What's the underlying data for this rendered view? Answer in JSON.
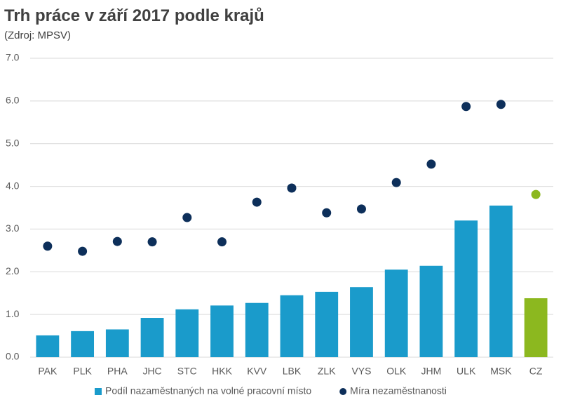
{
  "chart_data": {
    "type": "bar",
    "title": "Trh práce v září 2017 podle krajů",
    "subtitle": "(Zdroj: MPSV)",
    "categories": [
      "PAK",
      "PLK",
      "PHA",
      "JHC",
      "STC",
      "HKK",
      "KVV",
      "LBK",
      "ZLK",
      "VYS",
      "OLK",
      "JHM",
      "ULK",
      "MSK",
      "CZ"
    ],
    "series": [
      {
        "name": "Podíl nazaměstnaných na volné pracovní místo",
        "type": "bar",
        "color": "#1a9bcb",
        "colors": [
          "#1a9bcb",
          "#1a9bcb",
          "#1a9bcb",
          "#1a9bcb",
          "#1a9bcb",
          "#1a9bcb",
          "#1a9bcb",
          "#1a9bcb",
          "#1a9bcb",
          "#1a9bcb",
          "#1a9bcb",
          "#1a9bcb",
          "#1a9bcb",
          "#1a9bcb",
          "#8cb81f"
        ],
        "values": [
          0.51,
          0.61,
          0.65,
          0.92,
          1.12,
          1.21,
          1.27,
          1.45,
          1.53,
          1.64,
          2.05,
          2.14,
          3.2,
          3.55,
          1.38
        ]
      },
      {
        "name": "Míra nezaměstnanosti",
        "type": "scatter",
        "color": "#0d2f5a",
        "colors": [
          "#0d2f5a",
          "#0d2f5a",
          "#0d2f5a",
          "#0d2f5a",
          "#0d2f5a",
          "#0d2f5a",
          "#0d2f5a",
          "#0d2f5a",
          "#0d2f5a",
          "#0d2f5a",
          "#0d2f5a",
          "#0d2f5a",
          "#0d2f5a",
          "#0d2f5a",
          "#8cb81f"
        ],
        "values": [
          2.6,
          2.48,
          2.71,
          2.7,
          3.27,
          2.7,
          3.63,
          3.96,
          3.38,
          3.47,
          4.09,
          4.52,
          5.87,
          5.92,
          3.81
        ]
      }
    ],
    "ylim": [
      0,
      7
    ],
    "yticks": [
      {
        "value": 0,
        "label": "0.0"
      },
      {
        "value": 1,
        "label": "1.0"
      },
      {
        "value": 2,
        "label": "2.0"
      },
      {
        "value": 3,
        "label": "3.0"
      },
      {
        "value": 4,
        "label": "4.0"
      },
      {
        "value": 5,
        "label": "5.0"
      },
      {
        "value": 6,
        "label": "6.0"
      },
      {
        "value": 7,
        "label": "7.0"
      }
    ],
    "grid": true,
    "legend": "bottom"
  }
}
